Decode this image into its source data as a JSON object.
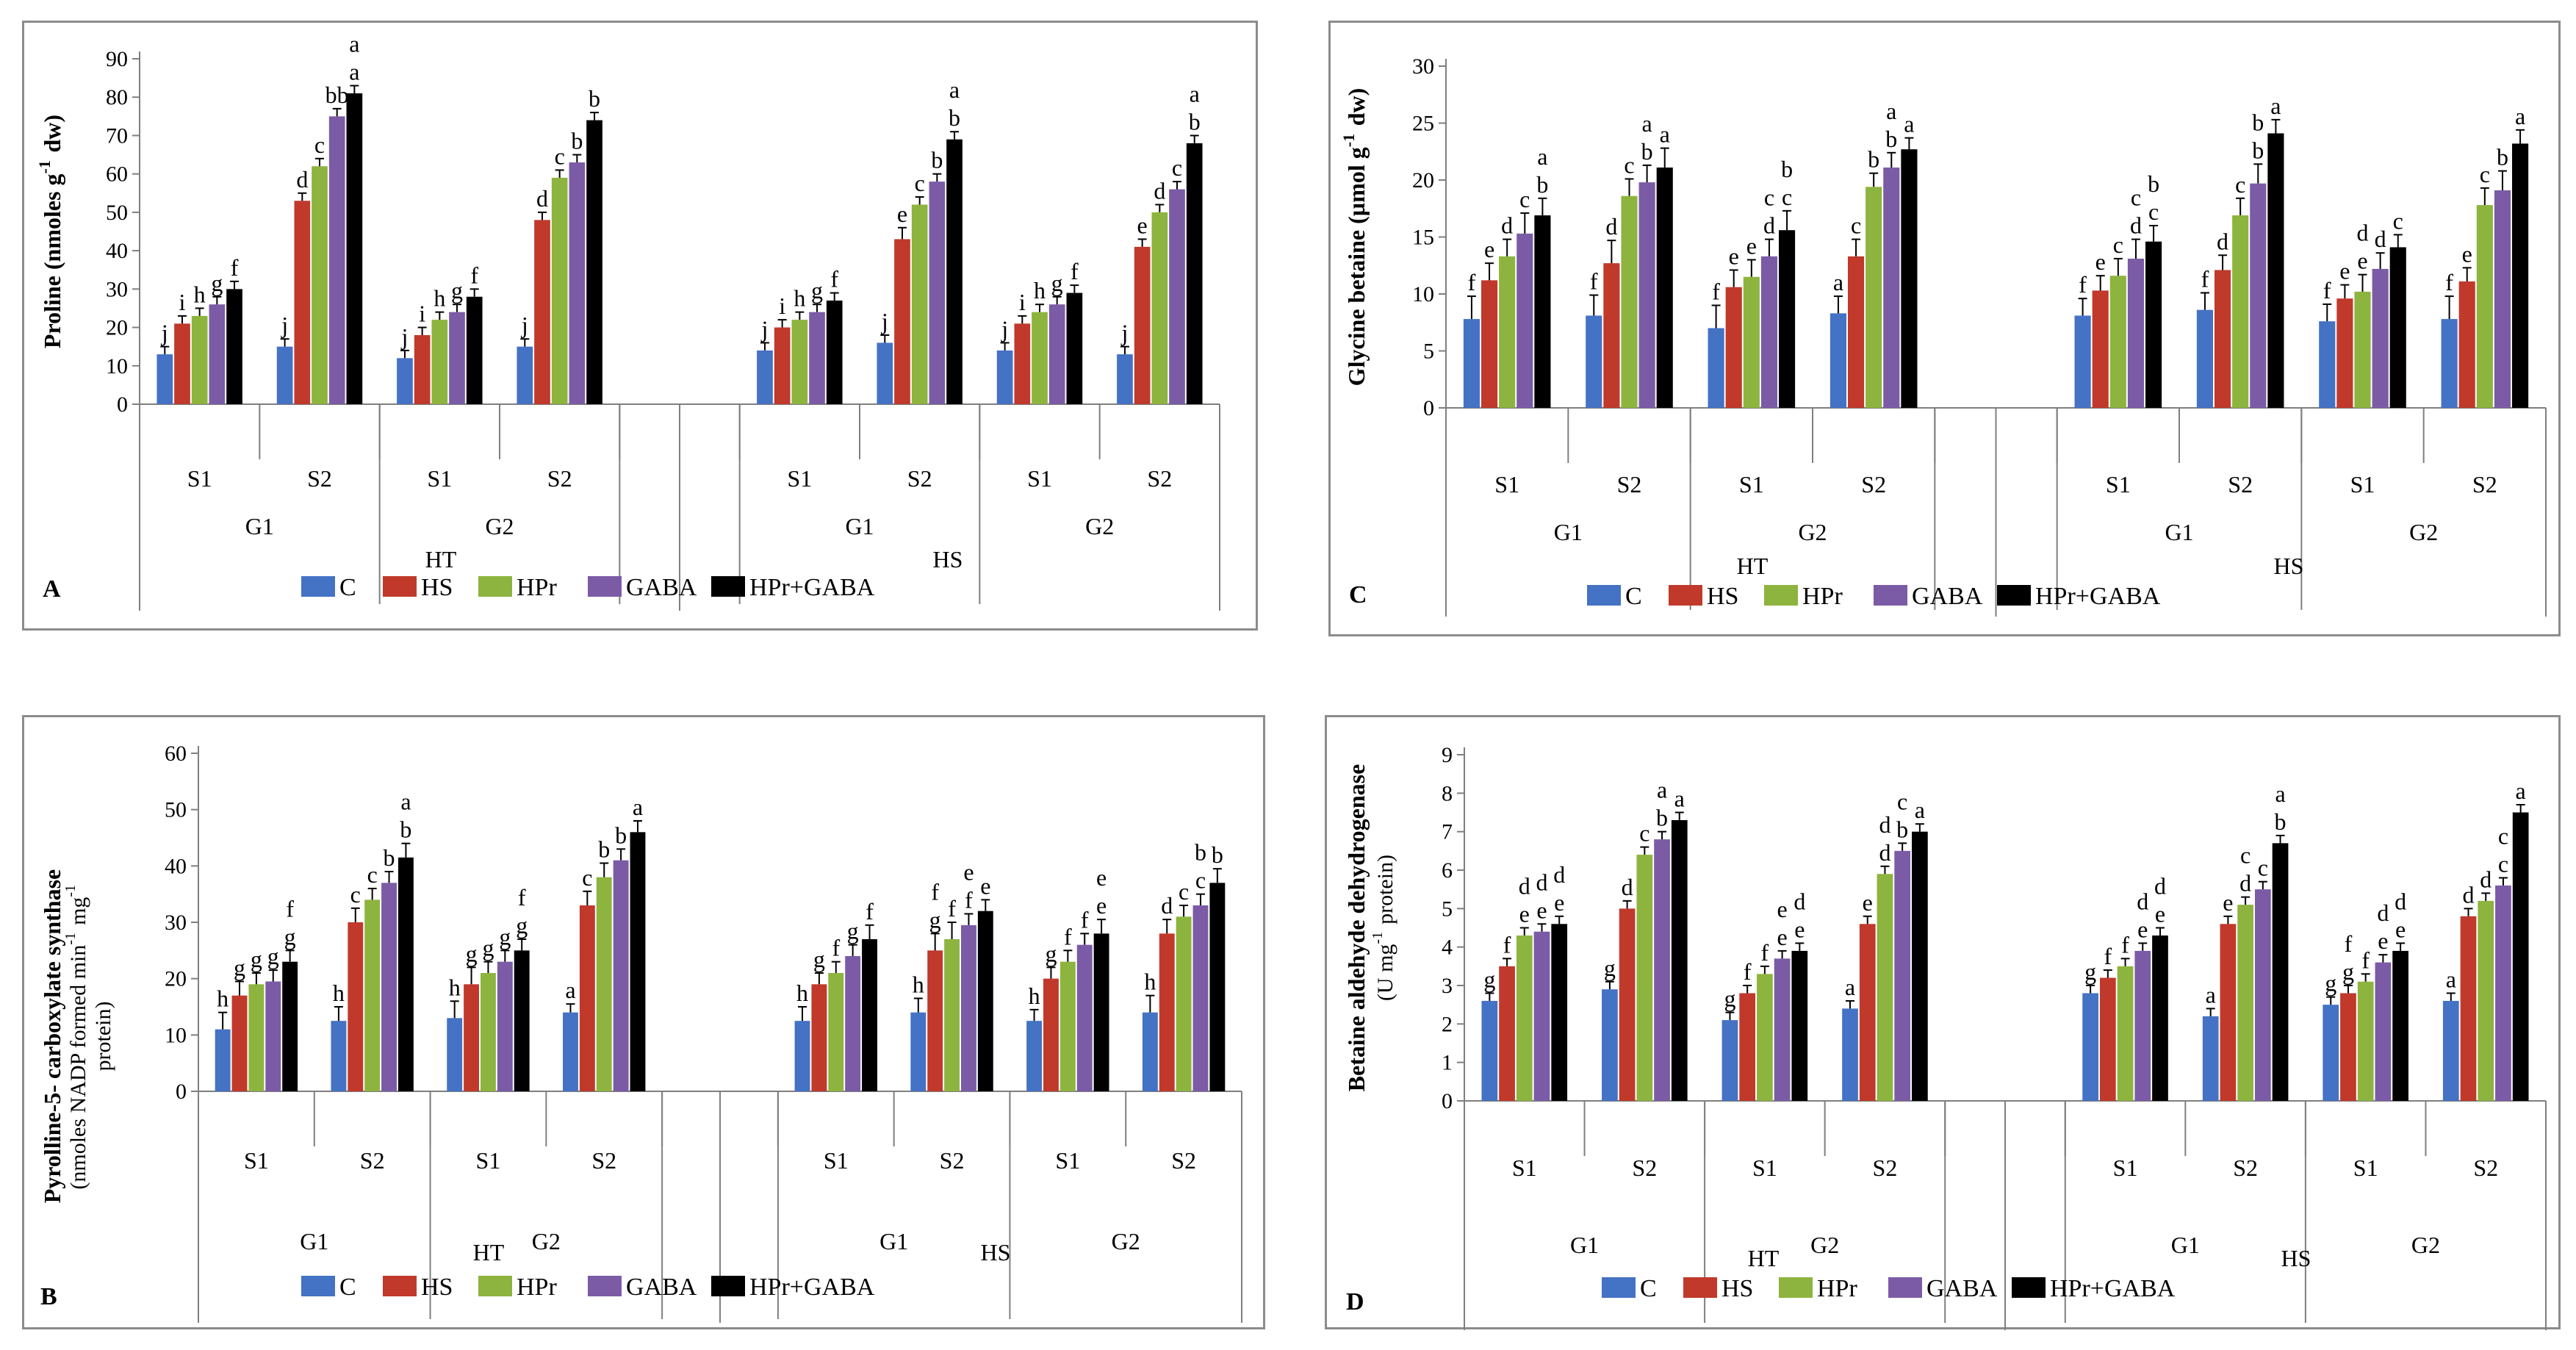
{
  "figure": {
    "series_legend": [
      "C",
      "HS",
      "HPr",
      "GABA",
      "HPr+GABA"
    ],
    "colors": {
      "C": "#4472C4",
      "HS": "#C0392B",
      "HPr": "#8DB43E",
      "GABA": "#7B5BA6",
      "HPr+GABA": "#000000"
    },
    "group_labels": [
      "S1",
      "S2",
      "S1",
      "S2",
      "S1",
      "S2",
      "S1",
      "S2"
    ],
    "genotype_labels": [
      "G1",
      "G2",
      "G1",
      "G2"
    ],
    "treatment_labels": [
      "HT",
      "HS"
    ]
  },
  "chart_data": [
    {
      "panel": "A",
      "type": "bar",
      "ylabel": "Proline (nmoles g-1 dw)",
      "ylim": [
        0,
        90
      ],
      "yticks": [
        0,
        10,
        20,
        30,
        40,
        50,
        60,
        70,
        80,
        90
      ],
      "categories": [
        "HT-G1-S1",
        "HT-G1-S2",
        "HT-G2-S1",
        "HT-G2-S2",
        "HS-G1-S1",
        "HS-G1-S2",
        "HS-G2-S1",
        "HS-G2-S2"
      ],
      "series": [
        {
          "name": "C",
          "values": [
            13,
            15,
            12,
            15,
            14,
            16,
            14,
            13
          ],
          "errors": [
            2,
            2,
            2,
            2,
            2,
            2,
            2,
            2
          ],
          "letters": [
            "j",
            "j",
            "j",
            "j",
            "j",
            "j",
            "j",
            "j"
          ]
        },
        {
          "name": "HS",
          "values": [
            21,
            53,
            18,
            48,
            20,
            43,
            21,
            41
          ],
          "errors": [
            2,
            2,
            2,
            2,
            2,
            3,
            2,
            2
          ],
          "letters": [
            "i",
            "d",
            "i",
            "d",
            "i",
            "e",
            "i",
            "e"
          ]
        },
        {
          "name": "HPr",
          "values": [
            23,
            62,
            22,
            59,
            22,
            52,
            24,
            50
          ],
          "errors": [
            2,
            2,
            2,
            2,
            2,
            2,
            2,
            2
          ],
          "letters": [
            "h",
            "c",
            "h",
            "c",
            "h",
            "c",
            "h",
            "d"
          ]
        },
        {
          "name": "GABA",
          "values": [
            26,
            75,
            24,
            63,
            24,
            58,
            26,
            56
          ],
          "errors": [
            2,
            2,
            2,
            2,
            2,
            2,
            2,
            2
          ],
          "letters": [
            "g",
            "bb",
            "g",
            "b",
            "g",
            "b",
            "g",
            "c"
          ]
        },
        {
          "name": "HPr+GABA",
          "values": [
            30,
            81,
            28,
            74,
            27,
            69,
            29,
            68
          ],
          "errors": [
            2,
            2,
            2,
            2,
            2,
            2,
            2,
            2
          ],
          "letters": [
            "f",
            "a",
            "f",
            "b",
            "f",
            "b",
            "f",
            "b"
          ]
        }
      ],
      "extra_letters": [
        {
          "group": 1,
          "series": 4,
          "text": "a"
        },
        {
          "group": 5,
          "series": 4,
          "text": "a"
        },
        {
          "group": 7,
          "series": 4,
          "text": "a"
        }
      ]
    },
    {
      "panel": "C",
      "type": "bar",
      "ylabel": "Glycine betaine (µmol g-1 dw)",
      "ylim": [
        0,
        30
      ],
      "yticks": [
        0,
        5,
        10,
        15,
        20,
        25,
        30
      ],
      "categories": [
        "HT-G1-S1",
        "HT-G1-S2",
        "HT-G2-S1",
        "HT-G2-S2",
        "HS-G1-S1",
        "HS-G1-S2",
        "HS-G2-S1",
        "HS-G2-S2"
      ],
      "series": [
        {
          "name": "C",
          "values": [
            7.8,
            8.1,
            7.0,
            8.3,
            8.1,
            8.6,
            7.6,
            7.8
          ],
          "errors": [
            2,
            1.8,
            2,
            1.5,
            1.5,
            1.5,
            1.5,
            2
          ],
          "letters": [
            "f",
            "f",
            "f",
            "a",
            "f",
            "f",
            "f",
            "f"
          ]
        },
        {
          "name": "HS",
          "values": [
            11.2,
            12.7,
            10.6,
            13.3,
            10.3,
            12.1,
            9.6,
            11.1
          ],
          "errors": [
            1.5,
            2,
            1.5,
            1.5,
            1.3,
            1.3,
            1.2,
            1.2
          ],
          "letters": [
            "e",
            "d",
            "e",
            "c",
            "e",
            "d",
            "e",
            "e"
          ]
        },
        {
          "name": "HPr",
          "values": [
            13.3,
            18.6,
            11.5,
            19.4,
            11.6,
            16.9,
            10.2,
            17.8
          ],
          "errors": [
            1.5,
            1.5,
            1.5,
            1.2,
            1.5,
            1.5,
            1.5,
            1.5
          ],
          "letters": [
            "d",
            "c",
            "e",
            "b",
            "c",
            "c",
            "e",
            "c"
          ]
        },
        {
          "name": "GABA",
          "values": [
            15.3,
            19.8,
            13.3,
            21.1,
            13.1,
            19.7,
            12.2,
            19.1
          ],
          "errors": [
            1.8,
            1.5,
            1.5,
            1.3,
            1.7,
            1.7,
            1.4,
            1.7
          ],
          "letters": [
            "c",
            "b",
            "d",
            "b",
            "d",
            "b",
            "d",
            "b"
          ]
        },
        {
          "name": "HPr+GABA",
          "values": [
            16.9,
            21.1,
            15.6,
            22.7,
            14.6,
            24.1,
            14.1,
            23.2
          ],
          "errors": [
            1.5,
            1.7,
            1.7,
            1.0,
            1.4,
            1.2,
            1.1,
            1.2
          ],
          "letters": [
            "b",
            "a",
            "c",
            "a",
            "c",
            "a",
            "c",
            "a"
          ]
        }
      ],
      "extra_letters": [
        {
          "group": 0,
          "series": 4,
          "text": "a"
        },
        {
          "group": 1,
          "series": 3,
          "text": "a"
        },
        {
          "group": 2,
          "series": 3,
          "text": "c"
        },
        {
          "group": 2,
          "series": 4,
          "text": "b"
        },
        {
          "group": 3,
          "series": 3,
          "text": "a"
        },
        {
          "group": 4,
          "series": 3,
          "text": "c"
        },
        {
          "group": 4,
          "series": 4,
          "text": "b"
        },
        {
          "group": 5,
          "series": 3,
          "text": "b"
        },
        {
          "group": 6,
          "series": 2,
          "text": "d"
        }
      ]
    },
    {
      "panel": "B",
      "type": "bar",
      "ylabel": "Pyrolline-5- carboxylate synthase (nmoles NADP formed min-1 mg-1 protein)",
      "ylim": [
        0,
        60
      ],
      "yticks": [
        0,
        10,
        20,
        30,
        40,
        50,
        60
      ],
      "categories": [
        "HT-G1-S1",
        "HT-G1-S2",
        "HT-G2-S1",
        "HT-G2-S2",
        "HS-G1-S1",
        "HS-G1-S2",
        "HS-G2-S1",
        "HS-G2-S2"
      ],
      "series": [
        {
          "name": "C",
          "values": [
            11,
            12.5,
            13,
            14,
            12.5,
            14,
            12.5,
            14
          ],
          "errors": [
            3,
            2.5,
            3,
            1.5,
            2.5,
            2.5,
            2.0,
            3
          ],
          "letters": [
            "h",
            "h",
            "h",
            "a",
            "h",
            "h",
            "h",
            "h"
          ]
        },
        {
          "name": "HS",
          "values": [
            17,
            30,
            19,
            33,
            19,
            25,
            20,
            28
          ],
          "errors": [
            2.5,
            2.5,
            3,
            2.5,
            2,
            3,
            2,
            2.5
          ],
          "letters": [
            "g",
            "c",
            "g",
            "c",
            "g",
            "g",
            "g",
            "d"
          ]
        },
        {
          "name": "HPr",
          "values": [
            19,
            34,
            21,
            38,
            21,
            27,
            23,
            31
          ],
          "errors": [
            2,
            2,
            2,
            2.5,
            2,
            3,
            2,
            2
          ],
          "letters": [
            "g",
            "c",
            "g",
            "b",
            "f",
            "f",
            "f",
            "c"
          ]
        },
        {
          "name": "GABA",
          "values": [
            19.5,
            37,
            23,
            41,
            24,
            29.5,
            26,
            33
          ],
          "errors": [
            2,
            2,
            2,
            2,
            2,
            2,
            2,
            2
          ],
          "letters": [
            "g",
            "b",
            "g",
            "b",
            "g",
            "f",
            "f",
            "c"
          ]
        },
        {
          "name": "HPr+GABA",
          "values": [
            23,
            41.5,
            25,
            46,
            27,
            32,
            28,
            37
          ],
          "errors": [
            2,
            2.5,
            2,
            2,
            2.5,
            2,
            2.5,
            2.5
          ],
          "letters": [
            "g",
            "b",
            "g",
            "a",
            "f",
            "e",
            "e",
            "b"
          ]
        }
      ],
      "extra_letters": [
        {
          "group": 0,
          "series": 4,
          "text": "f"
        },
        {
          "group": 1,
          "series": 4,
          "text": "a"
        },
        {
          "group": 2,
          "series": 4,
          "text": "f"
        },
        {
          "group": 5,
          "series": 1,
          "text": "f"
        },
        {
          "group": 5,
          "series": 3,
          "text": "e"
        },
        {
          "group": 6,
          "series": 4,
          "text": "e"
        },
        {
          "group": 7,
          "series": 3,
          "text": "b"
        }
      ]
    },
    {
      "panel": "D",
      "type": "bar",
      "ylabel": "Betaine aldehyde dehydrogenase (U mg-1 protein)",
      "ylim": [
        0,
        9
      ],
      "yticks": [
        0,
        1,
        2,
        3,
        4,
        5,
        6,
        7,
        8,
        9
      ],
      "categories": [
        "HT-G1-S1",
        "HT-G1-S2",
        "HT-G2-S1",
        "HT-G2-S2",
        "HS-G1-S1",
        "HS-G1-S2",
        "HS-G2-S1",
        "HS-G2-S2"
      ],
      "series": [
        {
          "name": "C",
          "values": [
            2.6,
            2.9,
            2.1,
            2.4,
            2.8,
            2.2,
            2.5,
            2.6
          ],
          "errors": [
            0.2,
            0.2,
            0.2,
            0.2,
            0.2,
            0.2,
            0.2,
            0.2
          ],
          "letters": [
            "g",
            "g",
            "g",
            "a",
            "g",
            "a",
            "g",
            "a"
          ]
        },
        {
          "name": "HS",
          "values": [
            3.5,
            5.0,
            2.8,
            4.6,
            3.2,
            4.6,
            2.8,
            4.8
          ],
          "errors": [
            0.2,
            0.2,
            0.2,
            0.2,
            0.2,
            0.2,
            0.2,
            0.2
          ],
          "letters": [
            "f",
            "d",
            "f",
            "e",
            "f",
            "e",
            "g",
            "d"
          ]
        },
        {
          "name": "HPr",
          "values": [
            4.3,
            6.4,
            3.3,
            5.9,
            3.5,
            5.1,
            3.1,
            5.2
          ],
          "errors": [
            0.2,
            0.2,
            0.2,
            0.2,
            0.2,
            0.2,
            0.2,
            0.2
          ],
          "letters": [
            "e",
            "c",
            "f",
            "d",
            "f",
            "d",
            "f",
            "d"
          ]
        },
        {
          "name": "GABA",
          "values": [
            4.4,
            6.8,
            3.7,
            6.5,
            3.9,
            5.5,
            3.6,
            5.6
          ],
          "errors": [
            0.2,
            0.2,
            0.2,
            0.2,
            0.2,
            0.2,
            0.2,
            0.2
          ],
          "letters": [
            "e",
            "b",
            "e",
            "b",
            "e",
            "c",
            "e",
            "c"
          ]
        },
        {
          "name": "HPr+GABA",
          "values": [
            4.6,
            7.3,
            3.9,
            7.0,
            4.3,
            6.7,
            3.9,
            7.5
          ],
          "errors": [
            0.2,
            0.2,
            0.2,
            0.2,
            0.2,
            0.2,
            0.2,
            0.2
          ],
          "letters": [
            "e",
            "a",
            "e",
            "a",
            "e",
            "b",
            "e",
            "a"
          ]
        }
      ],
      "extra_letters": [
        {
          "group": 0,
          "series": 2,
          "text": "d"
        },
        {
          "group": 0,
          "series": 3,
          "text": "d"
        },
        {
          "group": 0,
          "series": 4,
          "text": "d"
        },
        {
          "group": 1,
          "series": 3,
          "text": "a"
        },
        {
          "group": 2,
          "series": 3,
          "text": "e"
        },
        {
          "group": 2,
          "series": 4,
          "text": "d"
        },
        {
          "group": 3,
          "series": 2,
          "text": "d"
        },
        {
          "group": 3,
          "series": 3,
          "text": "c"
        },
        {
          "group": 4,
          "series": 3,
          "text": "d"
        },
        {
          "group": 4,
          "series": 4,
          "text": "d"
        },
        {
          "group": 5,
          "series": 2,
          "text": "c"
        },
        {
          "group": 5,
          "series": 4,
          "text": "a"
        },
        {
          "group": 6,
          "series": 1,
          "text": "f"
        },
        {
          "group": 6,
          "series": 3,
          "text": "d"
        },
        {
          "group": 6,
          "series": 4,
          "text": "d"
        },
        {
          "group": 7,
          "series": 3,
          "text": "c"
        }
      ]
    }
  ]
}
